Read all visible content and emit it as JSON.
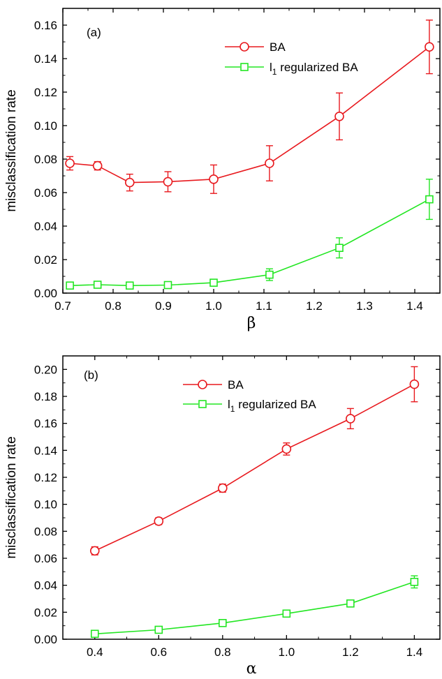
{
  "chart_data": [
    {
      "type": "line",
      "panel_label": "(a)",
      "xlabel": "β",
      "ylabel": "misclassification rate",
      "xlim": [
        0.7,
        1.45
      ],
      "ylim": [
        0.0,
        0.17
      ],
      "xticks": [
        "0.7",
        "0.8",
        "0.9",
        "1.0",
        "1.1",
        "1.2",
        "1.3",
        "1.4"
      ],
      "yticks": [
        "0.00",
        "0.02",
        "0.04",
        "0.06",
        "0.08",
        "0.10",
        "0.12",
        "0.14",
        "0.16"
      ],
      "legend_position": "top-right",
      "x": [
        0.714,
        0.769,
        0.833,
        0.909,
        1.0,
        1.111,
        1.25,
        1.429
      ],
      "series": [
        {
          "name": "BA",
          "color": "#e8191e",
          "marker": "circle",
          "values": [
            0.0775,
            0.076,
            0.066,
            0.0665,
            0.068,
            0.0775,
            0.1055,
            0.147
          ],
          "errors": [
            0.004,
            0.0025,
            0.005,
            0.006,
            0.0085,
            0.0105,
            0.014,
            0.016
          ]
        },
        {
          "name": "l1 regularized BA",
          "color": "#22e622",
          "marker": "square",
          "values": [
            0.0045,
            0.005,
            0.0045,
            0.0048,
            0.0062,
            0.011,
            0.027,
            0.056
          ],
          "errors": [
            0.0015,
            0.0015,
            0.0015,
            0.0015,
            0.002,
            0.0035,
            0.006,
            0.012
          ]
        }
      ]
    },
    {
      "type": "line",
      "panel_label": "(b)",
      "xlabel": "α",
      "ylabel": "misclassification rate",
      "xlim": [
        0.3,
        1.48
      ],
      "ylim": [
        0.0,
        0.21
      ],
      "xticks": [
        "0.4",
        "0.6",
        "0.8",
        "1.0",
        "1.2",
        "1.4"
      ],
      "yticks": [
        "0.00",
        "0.02",
        "0.04",
        "0.06",
        "0.08",
        "0.10",
        "0.12",
        "0.14",
        "0.16",
        "0.18",
        "0.20"
      ],
      "legend_position": "top-center",
      "x": [
        0.4,
        0.6,
        0.8,
        1.0,
        1.2,
        1.4
      ],
      "series": [
        {
          "name": "BA",
          "color": "#e8191e",
          "marker": "circle",
          "values": [
            0.0655,
            0.0875,
            0.112,
            0.141,
            0.1635,
            0.189
          ],
          "errors": [
            0.003,
            0.0025,
            0.003,
            0.0045,
            0.0075,
            0.013
          ]
        },
        {
          "name": "l1 regularized BA",
          "color": "#22e622",
          "marker": "square",
          "values": [
            0.004,
            0.007,
            0.012,
            0.019,
            0.0265,
            0.0425
          ],
          "errors": [
            0.001,
            0.001,
            0.0012,
            0.0015,
            0.002,
            0.0045
          ]
        }
      ]
    }
  ]
}
